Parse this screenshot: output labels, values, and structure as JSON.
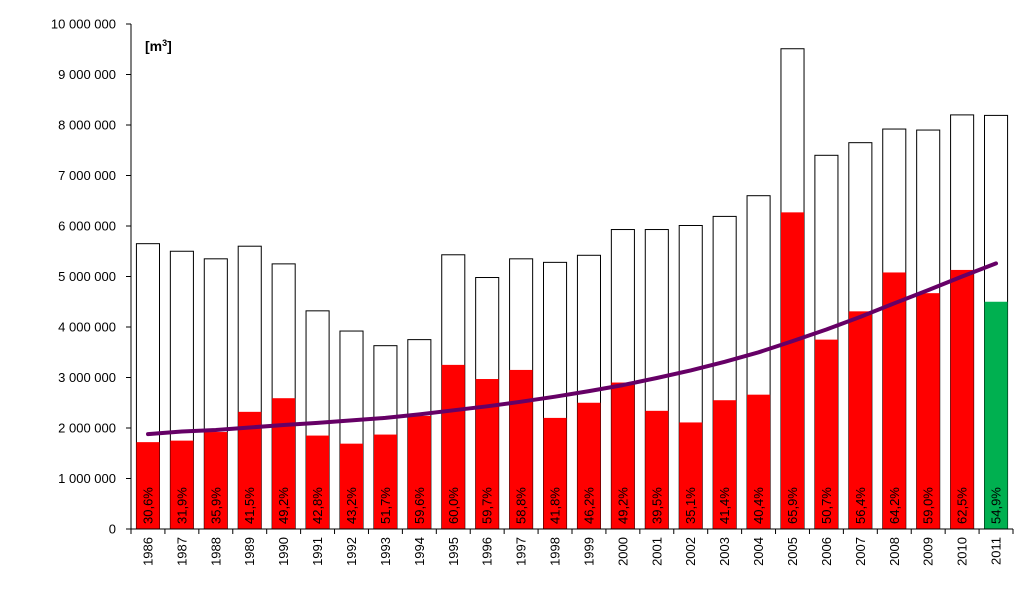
{
  "chart_data": {
    "type": "bar",
    "unit_label": "[m",
    "unit_superscript": "3",
    "unit_close": "]",
    "ylim": [
      0,
      10000000
    ],
    "grid": false,
    "yticks": [
      0,
      1000000,
      2000000,
      3000000,
      4000000,
      5000000,
      6000000,
      7000000,
      8000000,
      9000000,
      10000000
    ],
    "ytick_labels": [
      "0",
      "1 000 000",
      "2 000 000",
      "3 000 000",
      "4 000 000",
      "5 000 000",
      "6 000 000",
      "7 000 000",
      "8 000 000",
      "9 000 000",
      "10 000 000"
    ],
    "categories": [
      "1986",
      "1987",
      "1988",
      "1989",
      "1990",
      "1991",
      "1992",
      "1993",
      "1994",
      "1995",
      "1996",
      "1997",
      "1998",
      "1999",
      "2000",
      "2001",
      "2002",
      "2003",
      "2004",
      "2005",
      "2006",
      "2007",
      "2008",
      "2009",
      "2010",
      "2011"
    ],
    "series": [
      {
        "values": [
          5650000,
          5500000,
          5350000,
          5600000,
          5250000,
          4320000,
          3920000,
          3630000,
          3750000,
          5430000,
          4980000,
          5350000,
          5280000,
          5420000,
          5930000,
          5930000,
          6010000,
          6190000,
          6600000,
          9510000,
          7400000,
          7650000,
          7920000,
          7900000,
          8200000,
          8190000
        ]
      },
      {
        "values": [
          1720000,
          1750000,
          1920000,
          2320000,
          2590000,
          1850000,
          1690000,
          1870000,
          2240000,
          3250000,
          2970000,
          3150000,
          2200000,
          2500000,
          2900000,
          2340000,
          2110000,
          2550000,
          2660000,
          6270000,
          3750000,
          4310000,
          5080000,
          4670000,
          5130000,
          4500000
        ]
      },
      {
        "type": "trend",
        "values": [
          1880000,
          1930000,
          1960000,
          2010000,
          2060000,
          2100000,
          2150000,
          2200000,
          2270000,
          2350000,
          2430000,
          2520000,
          2620000,
          2730000,
          2850000,
          2990000,
          3140000,
          3310000,
          3500000,
          3720000,
          3950000,
          4200000,
          4470000,
          4730000,
          5000000,
          5260000
        ]
      }
    ],
    "bar_labels": [
      "30,6%",
      "31,9%",
      "35,9%",
      "41,5%",
      "49,2%",
      "42,8%",
      "43,2%",
      "51,7%",
      "59,6%",
      "60,0%",
      "59,7%",
      "58,8%",
      "41,8%",
      "46,2%",
      "49,2%",
      "39,5%",
      "35,1%",
      "41,4%",
      "40,4%",
      "65,9%",
      "50,7%",
      "56,4%",
      "64,2%",
      "59,0%",
      "62,5%",
      "54,9%"
    ],
    "colors": {
      "total_fill": "#ffffff",
      "total_stroke": "#000000",
      "part_fill": "#ff0000",
      "highlight_fill": "#00b050",
      "trend": "#660066",
      "axis": "#000000"
    },
    "highlight_index": 25
  }
}
